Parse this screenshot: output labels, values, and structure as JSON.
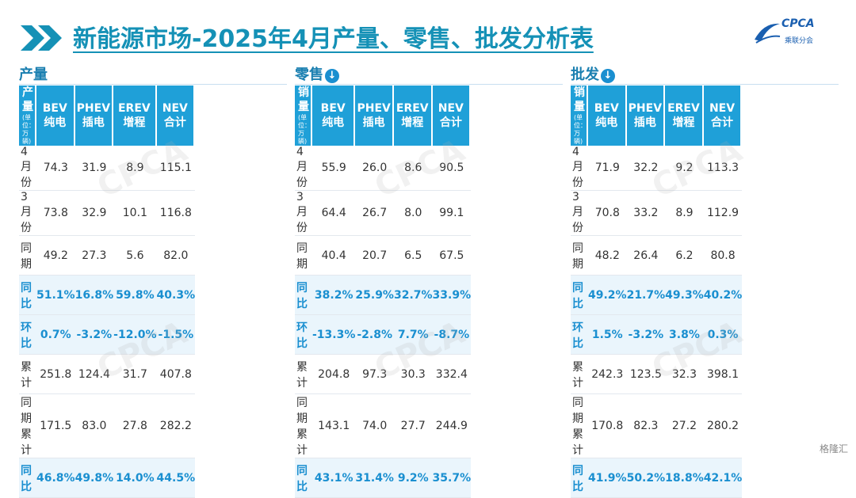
{
  "title": "新能源市场-2025年4月产量、零售、批发分析表",
  "logo": {
    "name": "CPCA",
    "sub": "乘联分会"
  },
  "footer": "格隆汇",
  "sections": [
    {
      "label": "产量",
      "has_icon": false,
      "headers": [
        {
          "line1": "产量",
          "line2": "(单位：万辆)"
        },
        {
          "line1": "BEV",
          "line2": "纯电"
        },
        {
          "line1": "PHEV",
          "line2": "插电"
        },
        {
          "line1": "EREV",
          "line2": "增程"
        },
        {
          "line1": "NEV",
          "line2": "合计"
        }
      ],
      "rows": [
        {
          "label": "4月份",
          "values": [
            "74.3",
            "31.9",
            "8.9",
            "115.1"
          ],
          "highlight": false
        },
        {
          "label": "3月份",
          "values": [
            "73.8",
            "32.9",
            "10.1",
            "116.8"
          ],
          "highlight": false
        },
        {
          "label": "同期",
          "values": [
            "49.2",
            "27.3",
            "5.6",
            "82.0"
          ],
          "highlight": false
        },
        {
          "label": "同比",
          "values": [
            "51.1%",
            "16.8%",
            "59.8%",
            "40.3%"
          ],
          "highlight": true
        },
        {
          "label": "环比",
          "values": [
            "0.7%",
            "-3.2%",
            "-12.0%",
            "-1.5%"
          ],
          "highlight": true
        },
        {
          "label": "累计",
          "values": [
            "251.8",
            "124.4",
            "31.7",
            "407.8"
          ],
          "highlight": false
        },
        {
          "label": "同期累计",
          "values": [
            "171.5",
            "83.0",
            "27.8",
            "282.2"
          ],
          "highlight": false
        },
        {
          "label": "同比",
          "values": [
            "46.8%",
            "49.8%",
            "14.0%",
            "44.5%"
          ],
          "highlight": true
        }
      ]
    },
    {
      "label": "零售",
      "has_icon": true,
      "headers": [
        {
          "line1": "销量",
          "line2": "(单位：万辆)"
        },
        {
          "line1": "BEV",
          "line2": "纯电"
        },
        {
          "line1": "PHEV",
          "line2": "插电"
        },
        {
          "line1": "EREV",
          "line2": "增程"
        },
        {
          "line1": "NEV",
          "line2": "合计"
        }
      ],
      "rows": [
        {
          "label": "4月份",
          "values": [
            "55.9",
            "26.0",
            "8.6",
            "90.5"
          ],
          "highlight": false
        },
        {
          "label": "3月份",
          "values": [
            "64.4",
            "26.7",
            "8.0",
            "99.1"
          ],
          "highlight": false
        },
        {
          "label": "同期",
          "values": [
            "40.4",
            "20.7",
            "6.5",
            "67.5"
          ],
          "highlight": false
        },
        {
          "label": "同比",
          "values": [
            "38.2%",
            "25.9%",
            "32.7%",
            "33.9%"
          ],
          "highlight": true
        },
        {
          "label": "环比",
          "values": [
            "-13.3%",
            "-2.8%",
            "7.7%",
            "-8.7%"
          ],
          "highlight": true
        },
        {
          "label": "累计",
          "values": [
            "204.8",
            "97.3",
            "30.3",
            "332.4"
          ],
          "highlight": false
        },
        {
          "label": "同期累计",
          "values": [
            "143.1",
            "74.0",
            "27.7",
            "244.9"
          ],
          "highlight": false
        },
        {
          "label": "同比",
          "values": [
            "43.1%",
            "31.4%",
            "9.2%",
            "35.7%"
          ],
          "highlight": true
        }
      ]
    },
    {
      "label": "批发",
      "has_icon": true,
      "headers": [
        {
          "line1": "销量",
          "line2": "(单位：万辆)"
        },
        {
          "line1": "BEV",
          "line2": "纯电"
        },
        {
          "line1": "PHEV",
          "line2": "插电"
        },
        {
          "line1": "EREV",
          "line2": "增程"
        },
        {
          "line1": "NEV",
          "line2": "合计"
        }
      ],
      "rows": [
        {
          "label": "4月份",
          "values": [
            "71.9",
            "32.2",
            "9.2",
            "113.3"
          ],
          "highlight": false
        },
        {
          "label": "3月份",
          "values": [
            "70.8",
            "33.2",
            "8.9",
            "112.9"
          ],
          "highlight": false
        },
        {
          "label": "同期",
          "values": [
            "48.2",
            "26.4",
            "6.2",
            "80.8"
          ],
          "highlight": false
        },
        {
          "label": "同比",
          "values": [
            "49.2%",
            "21.7%",
            "49.3%",
            "40.2%"
          ],
          "highlight": true
        },
        {
          "label": "环比",
          "values": [
            "1.5%",
            "-3.2%",
            "3.8%",
            "0.3%"
          ],
          "highlight": true
        },
        {
          "label": "累计",
          "values": [
            "242.3",
            "123.5",
            "32.3",
            "398.1"
          ],
          "highlight": false
        },
        {
          "label": "同期累计",
          "values": [
            "170.8",
            "82.3",
            "27.2",
            "280.2"
          ],
          "highlight": false
        },
        {
          "label": "同比",
          "values": [
            "41.9%",
            "50.2%",
            "18.8%",
            "42.1%"
          ],
          "highlight": true
        }
      ]
    }
  ],
  "colors": {
    "title": "#1591b6",
    "header_bg": "#1fa0d8",
    "highlight_text": "#1a8fd0",
    "highlight_bg": "#eaf5fc"
  }
}
